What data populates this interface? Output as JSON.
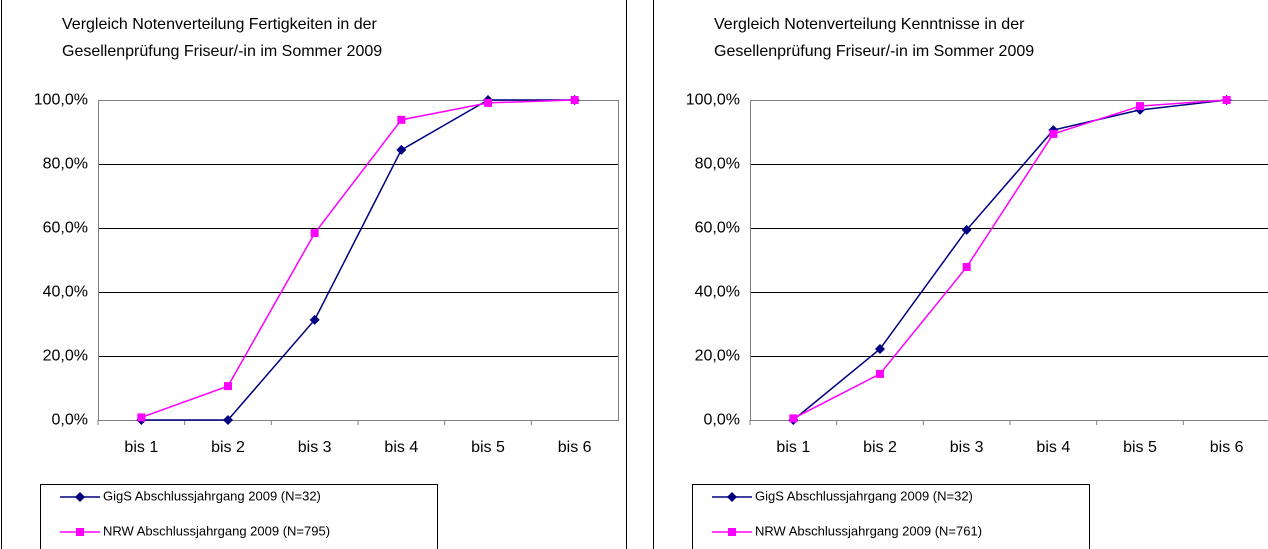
{
  "chart_data": [
    {
      "type": "line",
      "title": [
        "Vergleich Notenverteilung Fertigkeiten in der",
        "Gesellenprüfung Friseur/-in im Sommer 2009"
      ],
      "categories": [
        "bis 1",
        "bis 2",
        "bis 3",
        "bis 4",
        "bis 5",
        "bis 6"
      ],
      "series": [
        {
          "name": "GigS Abschlussjahrgang 2009 (N=32)",
          "color": "#000080",
          "marker": "diamond",
          "values": [
            0,
            0,
            31.3,
            84.4,
            100,
            100
          ]
        },
        {
          "name": "NRW Abschlussjahrgang 2009 (N=795)",
          "color": "#ff00ff",
          "marker": "square",
          "values": [
            0.8,
            10.6,
            58.4,
            93.8,
            99.1,
            100
          ]
        }
      ],
      "ylim": [
        0,
        100
      ],
      "yticks": [
        {
          "value": 0,
          "label": "0,0%"
        },
        {
          "value": 20,
          "label": "20,0%"
        },
        {
          "value": 40,
          "label": "40,0%"
        },
        {
          "value": 60,
          "label": "60,0%"
        },
        {
          "value": 80,
          "label": "80,0%"
        },
        {
          "value": 100,
          "label": "100,0%"
        }
      ],
      "grid": true
    },
    {
      "type": "line",
      "title": [
        "Vergleich Notenverteilung Kenntnisse in der",
        "Gesellenprüfung Friseur/-in im Sommer 2009"
      ],
      "categories": [
        "bis 1",
        "bis 2",
        "bis 3",
        "bis 4",
        "bis 5",
        "bis 6"
      ],
      "series": [
        {
          "name": "GigS Abschlussjahrgang 2009 (N=32)",
          "color": "#000080",
          "marker": "diamond",
          "values": [
            0,
            22.2,
            59.4,
            90.6,
            96.9,
            100
          ]
        },
        {
          "name": "NRW Abschlussjahrgang 2009 (N=761)",
          "color": "#ff00ff",
          "marker": "square",
          "values": [
            0.5,
            14.4,
            47.8,
            89.4,
            98.1,
            100
          ]
        }
      ],
      "ylim": [
        0,
        100
      ],
      "yticks": [
        {
          "value": 0,
          "label": "0,0%"
        },
        {
          "value": 20,
          "label": "20,0%"
        },
        {
          "value": 40,
          "label": "40,0%"
        },
        {
          "value": 60,
          "label": "60,0%"
        },
        {
          "value": 80,
          "label": "80,0%"
        },
        {
          "value": 100,
          "label": "100,0%"
        }
      ],
      "grid": true
    }
  ]
}
